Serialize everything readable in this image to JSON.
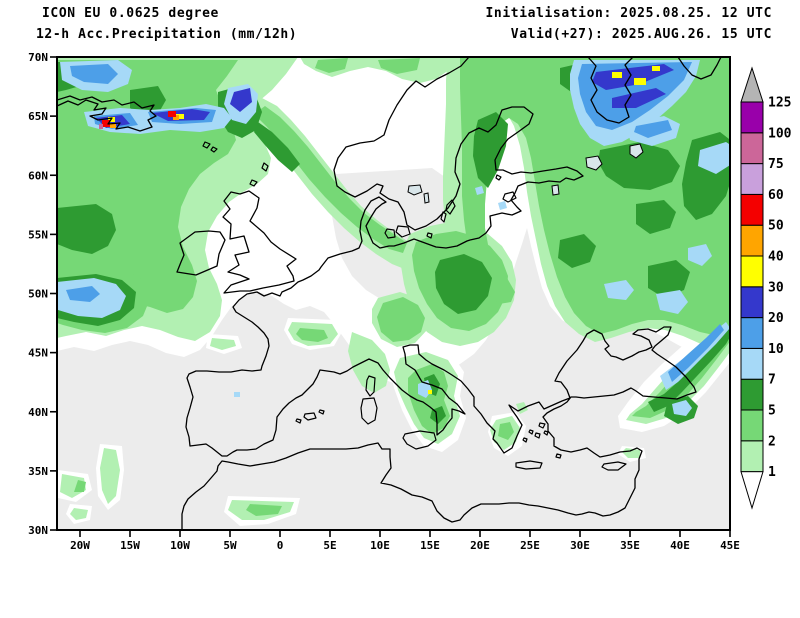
{
  "header": {
    "model": "ICON EU 0.0625 degree",
    "product": "12-h Acc.Precipitation (mm/12h)",
    "initialisation": "Initialisation: 2025.08.25. 12 UTC",
    "valid": "Valid(+27): 2025.AUG.26. 15 UTC"
  },
  "axes": {
    "lat_labels": [
      "70N",
      "65N",
      "60N",
      "55N",
      "50N",
      "45N",
      "40N",
      "35N",
      "30N"
    ],
    "lon_labels": [
      "20W",
      "15W",
      "10W",
      "5W",
      "0",
      "5E",
      "10E",
      "15E",
      "20E",
      "25E",
      "30E",
      "35E",
      "40E",
      "45E"
    ]
  },
  "colorbar": {
    "title_units": "mm/12h",
    "levels": [
      "1",
      "2",
      "5",
      "7",
      "10",
      "20",
      "30",
      "40",
      "50",
      "60",
      "75",
      "100",
      "125"
    ],
    "colors": [
      "#b2f0b2",
      "#76d876",
      "#2e9b32",
      "#a6d9f7",
      "#4d9fe8",
      "#3438cc",
      "#ffff00",
      "#ffa500",
      "#f40000",
      "#c9a0dc",
      "#cc6699",
      "#9900aa"
    ],
    "above_color": "#b4b4b4",
    "below_color": "#ffffff"
  },
  "map": {
    "background_color": "#ececec",
    "trace_color": "#ffffff",
    "coast_color": "#000000",
    "lon_range": [
      "22.3W",
      "45E"
    ],
    "lat_range": [
      "30N",
      "70N"
    ]
  }
}
